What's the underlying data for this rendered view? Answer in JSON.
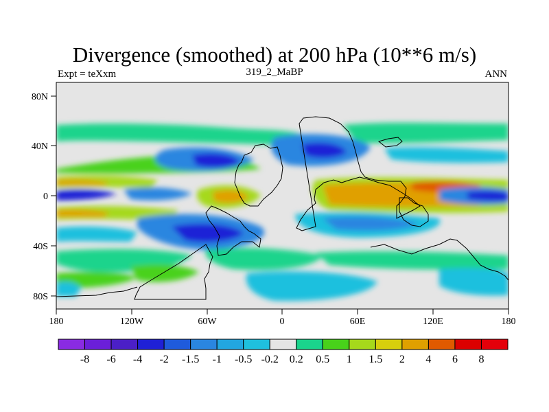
{
  "title": "Divergence (smoothed) at 200 hPa (10**6 m/s)",
  "left_subtitle": "Expt = teXxm",
  "center_subtitle": "319_2_MaBP",
  "right_subtitle": "ANN",
  "chart_data": {
    "type": "heatmap",
    "title": "Divergence (smoothed) at 200 hPa (10**6 m/s)",
    "variable": "Divergence (smoothed)",
    "units": "10**6 m/s",
    "level": "200 hPa",
    "xlim": [
      -180,
      180
    ],
    "ylim": [
      -90,
      90
    ],
    "x_ticks": [
      "180",
      "120W",
      "60W",
      "0",
      "60E",
      "120E",
      "180"
    ],
    "y_ticks": [
      "80N",
      "40N",
      "0",
      "40S",
      "80S"
    ],
    "colorbar": {
      "labels": [
        "-8",
        "-6",
        "-4",
        "-2",
        "-1.5",
        "-1",
        "-0.5",
        "-0.2",
        "0.2",
        "0.5",
        "1",
        "1.5",
        "2",
        "4",
        "6",
        "8"
      ],
      "colors": [
        "#8a2be2",
        "#6b1fd9",
        "#4b1fc7",
        "#1f20d6",
        "#1f5bdc",
        "#2a86e0",
        "#22a6e0",
        "#1fc0de",
        "#e5e5e5",
        "#1ad48c",
        "#48d21a",
        "#a6d91b",
        "#d7cf0c",
        "#e0a000",
        "#e05a00",
        "#dc0000",
        "#e4000a"
      ]
    },
    "bands": [
      {
        "lat": 53,
        "lon_start": -180,
        "lon_end": 0,
        "value": 0.5
      },
      {
        "lat": 40,
        "lon_start": -30,
        "lon_end": 60,
        "value": -1.5
      },
      {
        "lat": 22,
        "lon_start": -150,
        "lon_end": -90,
        "value": -4
      },
      {
        "lat": 12,
        "lon_start": -180,
        "lon_end": -30,
        "value": 1
      },
      {
        "lat": 2,
        "lon_start": 60,
        "lon_end": 100,
        "value": 2
      },
      {
        "lat": 2,
        "lon_start": 100,
        "lon_end": 140,
        "value": 4
      },
      {
        "lat": 2,
        "lon_start": 150,
        "lon_end": 180,
        "value": -4
      },
      {
        "lat": 0,
        "lon_start": -50,
        "lon_end": -30,
        "value": 2
      },
      {
        "lat": -10,
        "lon_start": -180,
        "lon_end": -130,
        "value": 1.5
      },
      {
        "lat": -25,
        "lon_start": -130,
        "lon_end": -20,
        "value": -2
      },
      {
        "lat": -40,
        "lon_start": -80,
        "lon_end": -40,
        "value": -4
      },
      {
        "lat": -50,
        "lon_start": 0,
        "lon_end": 80,
        "value": 0.5
      },
      {
        "lat": -70,
        "lon_start": -180,
        "lon_end": -100,
        "value": 1
      },
      {
        "lat": -75,
        "lon_start": -30,
        "lon_end": 80,
        "value": -0.5
      }
    ]
  }
}
